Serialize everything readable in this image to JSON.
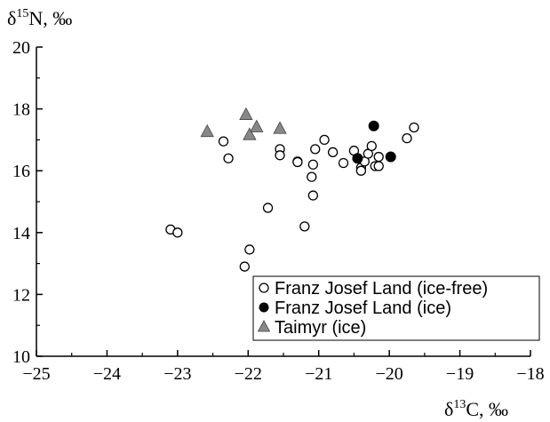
{
  "chart_data": {
    "type": "scatter",
    "ylabel_parts": {
      "pre": "δ",
      "sup": "15",
      "post": "N, ‰"
    },
    "xlabel_parts": {
      "pre": "δ",
      "sup": "13",
      "post": "C, ‰"
    },
    "xlim": [
      -25,
      -18
    ],
    "ylim": [
      10,
      20
    ],
    "x_ticks": [
      -25,
      -24,
      -23,
      -22,
      -21,
      -20,
      -19,
      -18
    ],
    "x_tick_labels": [
      "−25",
      "−24",
      "−23",
      "−22",
      "−21",
      "−20",
      "−19",
      "−18"
    ],
    "y_ticks": [
      10,
      12,
      14,
      16,
      18,
      20
    ],
    "y_tick_labels": [
      "10",
      "12",
      "14",
      "16",
      "18",
      "20"
    ],
    "grid": false,
    "legend_position": "bottom-right",
    "series": [
      {
        "name": "Franz Josef Land (ice-free)",
        "marker": "open-circle",
        "color": "#000000",
        "points": [
          [
            -23.1,
            14.1
          ],
          [
            -23.0,
            14.0
          ],
          [
            -22.35,
            16.95
          ],
          [
            -22.28,
            16.4
          ],
          [
            -22.05,
            12.9
          ],
          [
            -21.98,
            13.45
          ],
          [
            -21.72,
            14.8
          ],
          [
            -21.55,
            16.7
          ],
          [
            -21.55,
            16.5
          ],
          [
            -21.3,
            16.3
          ],
          [
            -21.3,
            16.28
          ],
          [
            -21.2,
            14.2
          ],
          [
            -21.1,
            15.8
          ],
          [
            -21.08,
            15.2
          ],
          [
            -21.08,
            16.2
          ],
          [
            -21.05,
            16.7
          ],
          [
            -20.92,
            17.0
          ],
          [
            -20.8,
            16.6
          ],
          [
            -20.65,
            16.25
          ],
          [
            -20.5,
            16.65
          ],
          [
            -20.4,
            16.1
          ],
          [
            -20.4,
            16.0
          ],
          [
            -20.35,
            16.3
          ],
          [
            -20.3,
            16.55
          ],
          [
            -20.25,
            16.8
          ],
          [
            -20.2,
            16.15
          ],
          [
            -20.15,
            16.15
          ],
          [
            -20.15,
            16.45
          ],
          [
            -19.75,
            17.05
          ],
          [
            -19.65,
            17.4
          ]
        ]
      },
      {
        "name": "Franz Josef Land (ice)",
        "marker": "filled-circle",
        "color": "#000000",
        "points": [
          [
            -20.45,
            16.4
          ],
          [
            -20.22,
            17.45
          ],
          [
            -19.98,
            16.45
          ]
        ]
      },
      {
        "name": "Taimyr (ice)",
        "marker": "filled-triangle",
        "color": "#888888",
        "points": [
          [
            -22.58,
            17.25
          ],
          [
            -22.03,
            17.8
          ],
          [
            -21.98,
            17.15
          ],
          [
            -21.88,
            17.4
          ],
          [
            -21.55,
            17.35
          ]
        ]
      }
    ]
  }
}
